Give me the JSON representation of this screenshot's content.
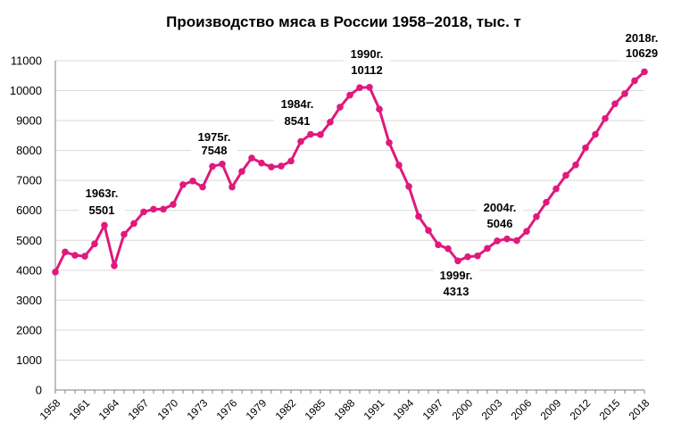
{
  "chart_data": {
    "type": "line",
    "title": "Производство мяса в России 1958–2018, тыс. т",
    "xlabel": "",
    "ylabel": "",
    "ylim": [
      0,
      11000
    ],
    "ytick_step": 1000,
    "grid": true,
    "legend": "none",
    "color": "#e0197d",
    "x": [
      1958,
      1959,
      1960,
      1961,
      1962,
      1963,
      1964,
      1965,
      1966,
      1967,
      1968,
      1969,
      1970,
      1971,
      1972,
      1973,
      1974,
      1975,
      1976,
      1977,
      1978,
      1979,
      1980,
      1981,
      1982,
      1983,
      1984,
      1985,
      1986,
      1987,
      1988,
      1989,
      1990,
      1991,
      1992,
      1993,
      1994,
      1995,
      1996,
      1997,
      1998,
      1999,
      2000,
      2001,
      2002,
      2003,
      2004,
      2005,
      2006,
      2007,
      2008,
      2009,
      2010,
      2011,
      2012,
      2013,
      2014,
      2015,
      2016,
      2017,
      2018
    ],
    "x_tick_labels": [
      "1958",
      "1961",
      "1964",
      "1967",
      "1970",
      "1973",
      "1976",
      "1979",
      "1982",
      "1985",
      "1988",
      "1991",
      "1994",
      "1997",
      "2000",
      "2003",
      "2006",
      "2009",
      "2012",
      "2015",
      "2018"
    ],
    "series": [
      {
        "values": [
          3940,
          4610,
          4500,
          4470,
          4880,
          5501,
          4150,
          5200,
          5560,
          5950,
          6040,
          6040,
          6200,
          6860,
          6980,
          6780,
          7470,
          7548,
          6780,
          7300,
          7750,
          7580,
          7450,
          7480,
          7650,
          8300,
          8541,
          8530,
          8950,
          9450,
          9850,
          10100,
          10112,
          9380,
          8260,
          7510,
          6800,
          5800,
          5330,
          4850,
          4720,
          4313,
          4450,
          4480,
          4730,
          4980,
          5046,
          4990,
          5300,
          5790,
          6270,
          6720,
          7170,
          7520,
          8090,
          8540,
          9070,
          9560,
          9900,
          10330,
          10629
        ]
      }
    ],
    "annotations": [
      {
        "year": 1963,
        "label": "1963г.",
        "value": "5501"
      },
      {
        "year": 1975,
        "label": "1975г.",
        "value": "7548"
      },
      {
        "year": 1984,
        "label": "1984г.",
        "value": "8541"
      },
      {
        "year": 1990,
        "label": "1990г.",
        "value": "10112"
      },
      {
        "year": 1999,
        "label": "1999г.",
        "value": "4313"
      },
      {
        "year": 2004,
        "label": "2004г.",
        "value": "5046"
      },
      {
        "year": 2018,
        "label": "2018г.",
        "value": "10629"
      }
    ]
  }
}
